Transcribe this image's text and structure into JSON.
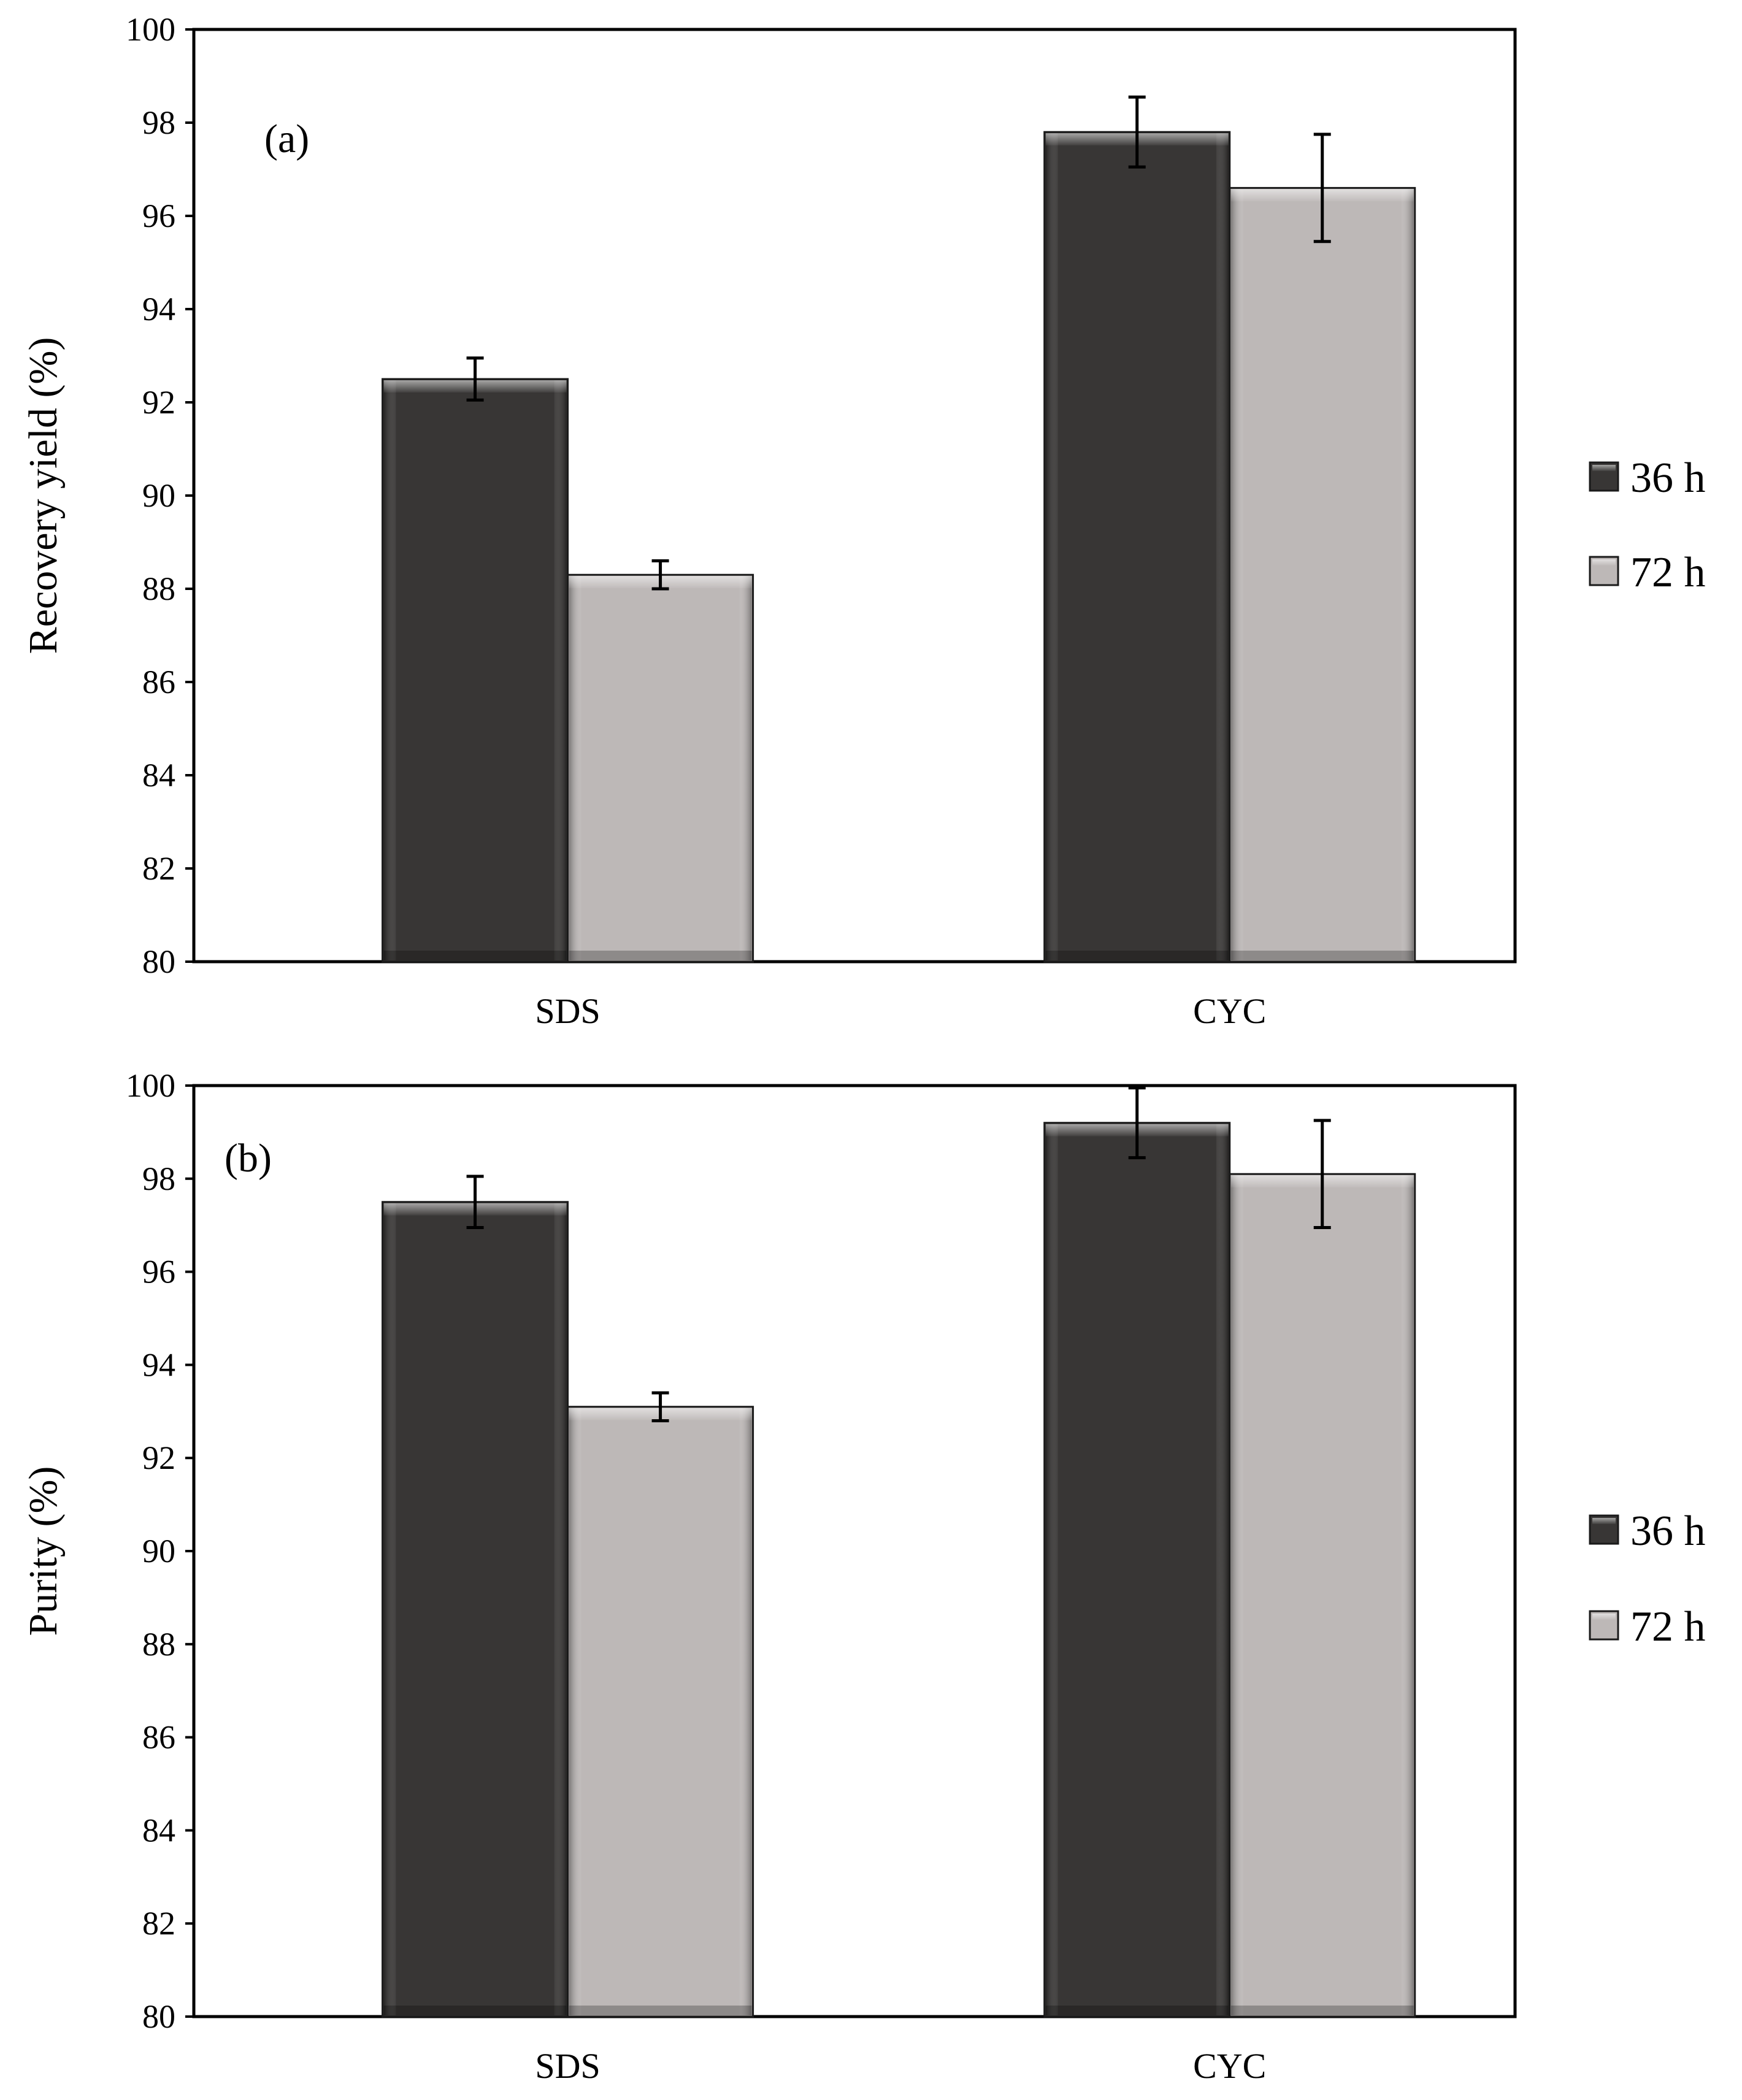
{
  "figure": {
    "background": "#ffffff",
    "series_colors": {
      "36 h": "#383635",
      "72 h": "#bdb8b7"
    }
  },
  "chart_data": [
    {
      "type": "bar",
      "panel_label": "(a)",
      "categories": [
        "SDS",
        "CYC"
      ],
      "series": [
        {
          "name": "36 h",
          "values": [
            92.5,
            97.8
          ],
          "errors": [
            0.45,
            0.75
          ]
        },
        {
          "name": "72 h",
          "values": [
            88.3,
            96.6
          ],
          "errors": [
            0.3,
            1.15
          ]
        }
      ],
      "xlabel": "",
      "ylabel": "Recovery yield (%)",
      "ylim": [
        80,
        100
      ],
      "yticks": [
        80,
        82,
        84,
        86,
        88,
        90,
        92,
        94,
        96,
        98,
        100
      ],
      "grid": false,
      "legend": {
        "position": "right",
        "entries": [
          "36 h",
          "72 h"
        ]
      }
    },
    {
      "type": "bar",
      "panel_label": "(b)",
      "categories": [
        "SDS",
        "CYC"
      ],
      "series": [
        {
          "name": "36 h",
          "values": [
            97.5,
            99.2
          ],
          "errors": [
            0.55,
            0.75
          ]
        },
        {
          "name": "72 h",
          "values": [
            93.1,
            98.1
          ],
          "errors": [
            0.3,
            1.15
          ]
        }
      ],
      "xlabel": "",
      "ylabel": "Purity (%)",
      "ylim": [
        80,
        100
      ],
      "yticks": [
        80,
        82,
        84,
        86,
        88,
        90,
        92,
        94,
        96,
        98,
        100
      ],
      "grid": false,
      "legend": {
        "position": "right",
        "entries": [
          "36 h",
          "72 h"
        ]
      }
    }
  ]
}
